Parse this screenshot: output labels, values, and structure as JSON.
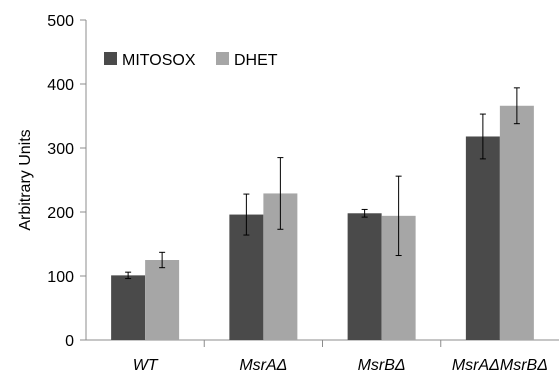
{
  "chart_data": {
    "type": "bar",
    "ylabel": "Arbitrary Units",
    "xlabel": "",
    "ylim": [
      0,
      500
    ],
    "yticks": [
      0,
      100,
      200,
      300,
      400,
      500
    ],
    "grid": false,
    "legend_position": "top-left",
    "categories": [
      "WT",
      "MsrAΔ",
      "MsrBΔ",
      "MsrAΔMsrBΔ"
    ],
    "series": [
      {
        "name": "MITOSOX",
        "color": "#4a4a4a",
        "values": [
          101,
          196,
          198,
          318
        ],
        "errors": [
          5,
          32,
          6,
          35
        ]
      },
      {
        "name": "DHET",
        "color": "#a6a6a6",
        "values": [
          125,
          229,
          194,
          366
        ],
        "errors": [
          12,
          56,
          62,
          28
        ]
      }
    ]
  }
}
